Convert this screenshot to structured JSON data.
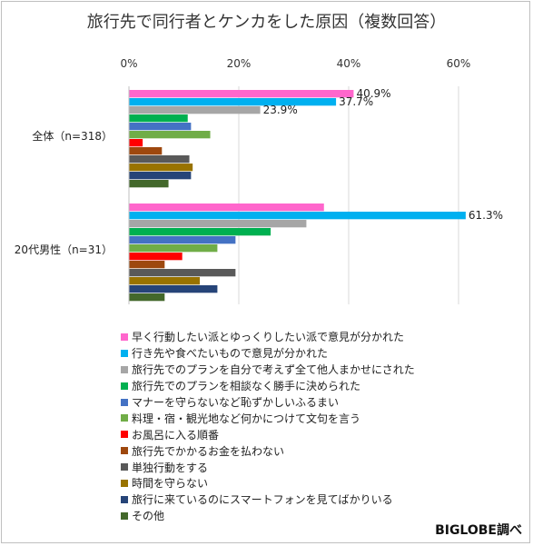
{
  "title": "旅行先で同行者とケンカをした原因（複数回答）",
  "source": "BIGLOBE調べ",
  "chart_data": {
    "type": "bar",
    "orientation": "horizontal",
    "title": "旅行先で同行者とケンカをした原因（複数回答）",
    "xlim": [
      0,
      60
    ],
    "x_ticks": [
      "0%",
      "20%",
      "40%",
      "60%"
    ],
    "grid": true,
    "legend_position": "bottom",
    "categories": [
      "全体（n=318）",
      "20代男性（n=31）"
    ],
    "series": [
      {
        "name": "早く行動したい派とゆっくりしたい派で意見が分かれた",
        "color": "#ff66cc",
        "values": [
          40.9,
          35.5
        ],
        "labels": [
          "40.9%",
          ""
        ]
      },
      {
        "name": "行き先や食べたいもので意見が分かれた",
        "color": "#00b0f0",
        "values": [
          37.7,
          61.3
        ],
        "labels": [
          "37.7%",
          "61.3%"
        ]
      },
      {
        "name": "旅行先でのプランを自分で考えず全て他人まかせにされた",
        "color": "#a6a6a6",
        "values": [
          23.9,
          32.3
        ],
        "labels": [
          "23.9%",
          ""
        ]
      },
      {
        "name": "旅行先でのプランを相談なく勝手に決められた",
        "color": "#00b050",
        "values": [
          10.7,
          25.8
        ],
        "labels": [
          "",
          ""
        ]
      },
      {
        "name": "マナーを守らないなど恥ずかしいふるまい",
        "color": "#4472c4",
        "values": [
          11.3,
          19.4
        ],
        "labels": [
          "",
          ""
        ]
      },
      {
        "name": "料理・宿・観光地など何かにつけて文句を言う",
        "color": "#70ad47",
        "values": [
          14.8,
          16.1
        ],
        "labels": [
          "",
          ""
        ]
      },
      {
        "name": "お風呂に入る順番",
        "color": "#ff0000",
        "values": [
          2.5,
          9.7
        ],
        "labels": [
          "",
          ""
        ]
      },
      {
        "name": "旅行先でかかるお金を払わない",
        "color": "#9e480e",
        "values": [
          6.0,
          6.5
        ],
        "labels": [
          "",
          ""
        ]
      },
      {
        "name": "単独行動をする",
        "color": "#595959",
        "values": [
          11.0,
          19.4
        ],
        "labels": [
          "",
          ""
        ]
      },
      {
        "name": "時間を守らない",
        "color": "#997300",
        "values": [
          11.6,
          12.9
        ],
        "labels": [
          "",
          ""
        ]
      },
      {
        "name": "旅行に来ているのにスマートフォンを見てばかりいる",
        "color": "#264478",
        "values": [
          11.3,
          16.1
        ],
        "labels": [
          "",
          ""
        ]
      },
      {
        "name": "その他",
        "color": "#43682b",
        "values": [
          7.2,
          6.5
        ],
        "labels": [
          "",
          ""
        ]
      }
    ]
  }
}
